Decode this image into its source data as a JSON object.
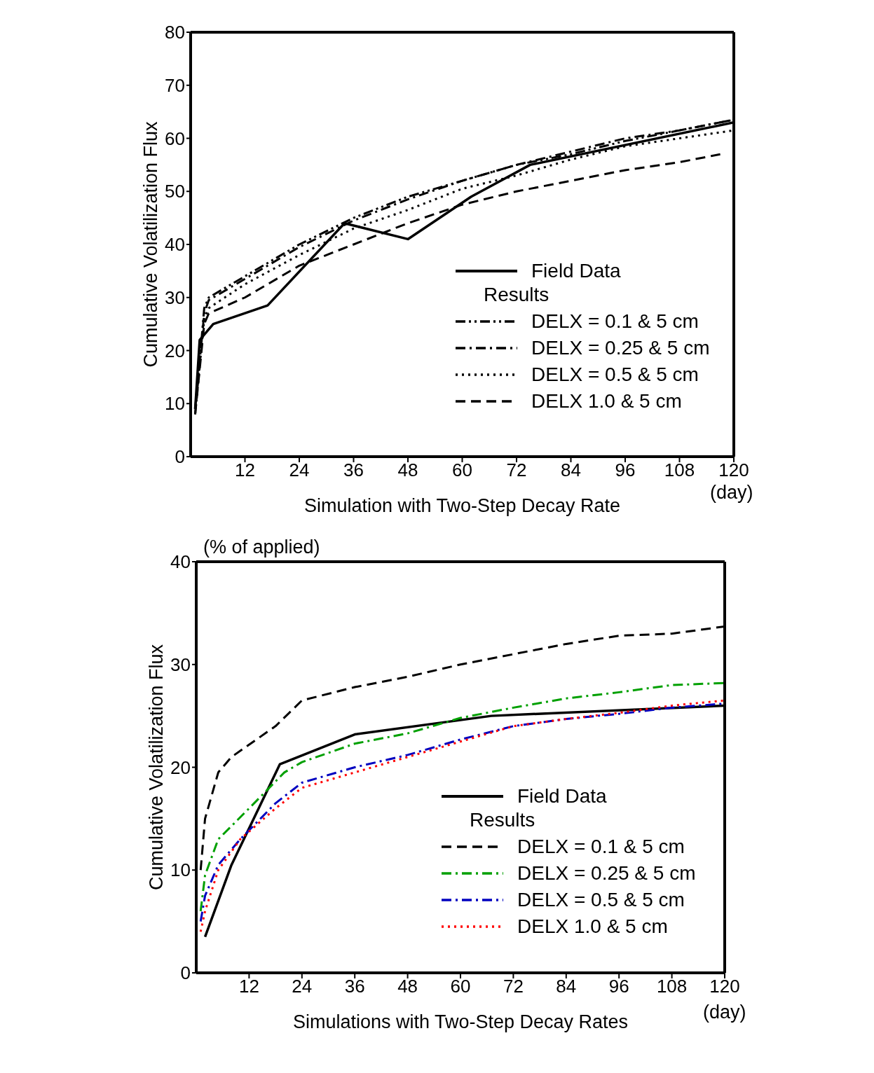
{
  "chart_data": [
    {
      "type": "line",
      "ylabel": "Cumulative Volatilization Flux",
      "xlabel": "Simulation with Two-Step Decay Rate",
      "legend_title": "Results",
      "legend": "right",
      "grid": false,
      "xlim": [
        0,
        120
      ],
      "xticks": [
        12,
        24,
        36,
        48,
        60,
        72,
        84,
        96,
        108,
        120
      ],
      "ylim": [
        0,
        80
      ],
      "yticks": [
        0,
        10,
        20,
        30,
        40,
        50,
        60,
        70,
        80
      ],
      "annotations": [
        "(day)"
      ],
      "series": [
        {
          "name": "Field Data",
          "color": "#000000",
          "line_style": "solid",
          "x": [
            1,
            2,
            5,
            17,
            34,
            48,
            62,
            75,
            120
          ],
          "values": [
            9,
            22,
            25,
            28.5,
            44,
            41,
            49,
            55,
            63
          ]
        },
        {
          "name": "DELX = 0.1 & 5 cm",
          "color": "#000000",
          "line_style": "dashdotdot",
          "x": [
            1,
            3,
            4,
            12,
            24,
            36,
            48,
            60,
            72,
            84,
            96,
            108,
            120
          ],
          "values": [
            8,
            28,
            30,
            34,
            40,
            45,
            49,
            52,
            55,
            57,
            59.5,
            61.5,
            63.5
          ]
        },
        {
          "name": "DELX = 0.25 & 5 cm",
          "color": "#000000",
          "line_style": "dashdot",
          "x": [
            1,
            3,
            4,
            12,
            24,
            36,
            48,
            60,
            72,
            84,
            96,
            108,
            120
          ],
          "values": [
            9,
            27,
            29.5,
            33.5,
            39.5,
            44.5,
            48.5,
            52,
            55,
            57.5,
            60,
            61.5,
            63.5
          ]
        },
        {
          "name": "DELX = 0.5 & 5 cm",
          "color": "#000000",
          "line_style": "dotted",
          "x": [
            1,
            3,
            4,
            12,
            24,
            36,
            48,
            60,
            72,
            84,
            96,
            108,
            120
          ],
          "values": [
            8,
            26,
            28,
            32.5,
            38,
            43,
            46.5,
            50.5,
            53,
            56,
            58.5,
            60,
            61.5
          ]
        },
        {
          "name": "DELX 1.0 & 5 cm",
          "color": "#000000",
          "line_style": "dashed",
          "x": [
            1,
            3,
            4,
            12,
            24,
            36,
            48,
            60,
            72,
            84,
            96,
            108,
            117
          ],
          "values": [
            8,
            25,
            27,
            30,
            36,
            40,
            44,
            47.5,
            50,
            52,
            54,
            55.5,
            57
          ]
        }
      ]
    },
    {
      "type": "line",
      "ylabel": "Cumulative Volatilization Flux",
      "xlabel": "Simulations with Two-Step Decay Rates",
      "legend_title": "Results",
      "legend": "bottom right",
      "grid": false,
      "xlim": [
        0,
        120
      ],
      "xticks": [
        12,
        24,
        36,
        48,
        60,
        72,
        84,
        96,
        108,
        120
      ],
      "ylim": [
        0,
        40
      ],
      "yticks": [
        0,
        10,
        20,
        30,
        40
      ],
      "annotations": [
        "(% of applied)",
        "(day)"
      ],
      "series": [
        {
          "name": "Field Data",
          "color": "#000000",
          "line_style": "solid",
          "x": [
            2,
            8,
            19,
            36,
            67,
            120
          ],
          "values": [
            3.5,
            10.5,
            20.3,
            23.2,
            25,
            26
          ]
        },
        {
          "name": "DELX = 0.1 & 5 cm",
          "color": "#000000",
          "line_style": "dashed",
          "x": [
            1,
            2,
            5,
            8,
            18,
            24,
            36,
            48,
            60,
            72,
            84,
            96,
            108,
            120
          ],
          "values": [
            10,
            15,
            19.5,
            21,
            24,
            26.5,
            27.8,
            28.8,
            30,
            31,
            32,
            32.8,
            33,
            33.7
          ]
        },
        {
          "name": "DELX = 0.25 & 5 cm",
          "color": "#00a000",
          "line_style": "dashdot",
          "x": [
            1,
            2,
            5,
            12,
            20,
            24,
            36,
            48,
            60,
            72,
            84,
            96,
            108,
            120
          ],
          "values": [
            6,
            9.5,
            13,
            16,
            19.5,
            20.5,
            22.3,
            23.3,
            24.8,
            25.8,
            26.7,
            27.3,
            28,
            28.2
          ]
        },
        {
          "name": "DELX = 0.5 & 5 cm",
          "color": "#0000c0",
          "line_style": "dashdot",
          "x": [
            1,
            2,
            5,
            10,
            18,
            24,
            36,
            48,
            60,
            72,
            84,
            96,
            108,
            120
          ],
          "values": [
            5,
            7.5,
            10.5,
            13,
            16.5,
            18.5,
            20,
            21.2,
            22.7,
            24,
            24.7,
            25.2,
            25.8,
            26.2
          ]
        },
        {
          "name": "DELX 1.0 & 5 cm",
          "color": "#ff0000",
          "line_style": "dotted",
          "x": [
            1,
            2,
            5,
            10,
            18,
            24,
            36,
            48,
            60,
            72,
            84,
            96,
            108,
            120
          ],
          "values": [
            4,
            6,
            10,
            13,
            16,
            18,
            19.5,
            21,
            22.5,
            24,
            24.7,
            25.3,
            26,
            26.5
          ]
        }
      ]
    }
  ]
}
